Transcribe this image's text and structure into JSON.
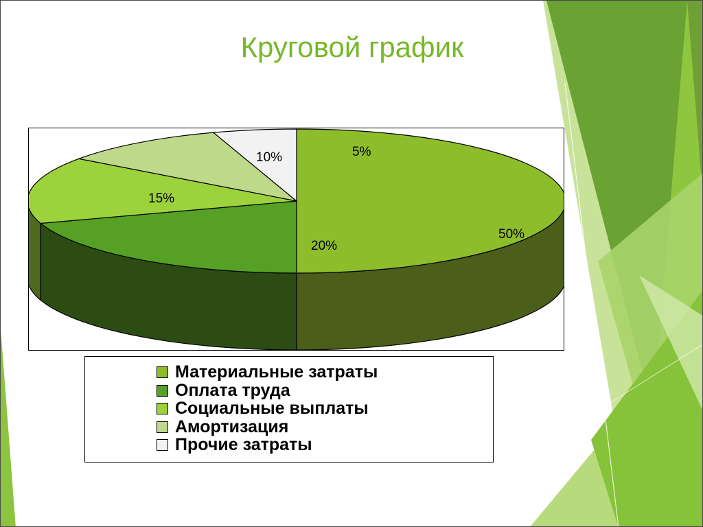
{
  "slide": {
    "title": "Круговой график"
  },
  "chart_data": {
    "type": "pie",
    "style": "3d",
    "categories": [
      "Материальные затраты",
      "Оплата труда",
      "Социальные выплаты",
      "Амортизация",
      "Прочие затраты"
    ],
    "values": [
      50,
      20,
      15,
      10,
      5
    ],
    "slice_labels": [
      "50%",
      "20%",
      "15%",
      "10%",
      "5%"
    ],
    "colors": [
      "#8ebd2c",
      "#55a025",
      "#9cd23c",
      "#bfd98a",
      "#f2f2f2"
    ],
    "side_colors": [
      "#4b5e1a",
      "#2d4c13",
      "#4d6a1e",
      "#5f6c45",
      "#797979"
    ],
    "legend_position": "bottom"
  }
}
